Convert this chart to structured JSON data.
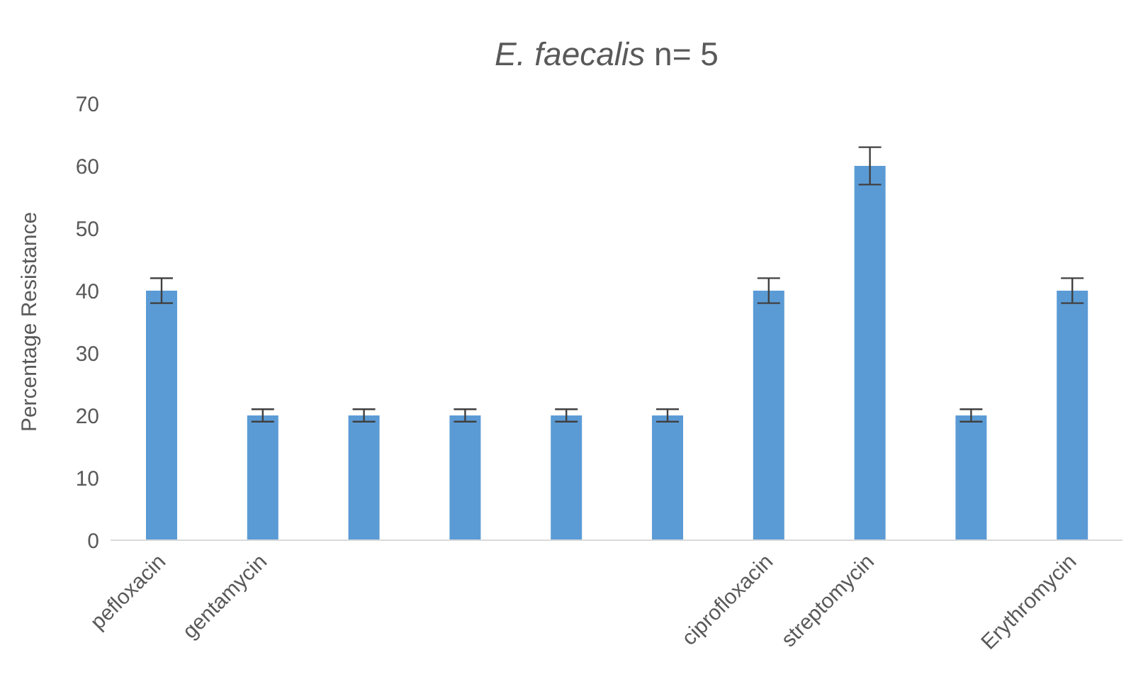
{
  "chart_data": {
    "type": "bar",
    "title": "E. faecalis n= 5",
    "ylabel": "Percentage Resistance",
    "categories": [
      "pefloxacin",
      "gentamycin",
      null,
      null,
      null,
      null,
      "ciprofloxacin",
      "streptomycin",
      null,
      "Erythromycin"
    ],
    "values": [
      40,
      20,
      20,
      20,
      20,
      20,
      40,
      60,
      20,
      40
    ],
    "errors": [
      2,
      1,
      1,
      1,
      1,
      1,
      2,
      3,
      1,
      2
    ],
    "color": "#5b9bd5",
    "ylim": [
      0,
      70
    ],
    "yticks": [
      0,
      10,
      20,
      30,
      40,
      50,
      60,
      70
    ],
    "grid": false,
    "legend": false
  }
}
